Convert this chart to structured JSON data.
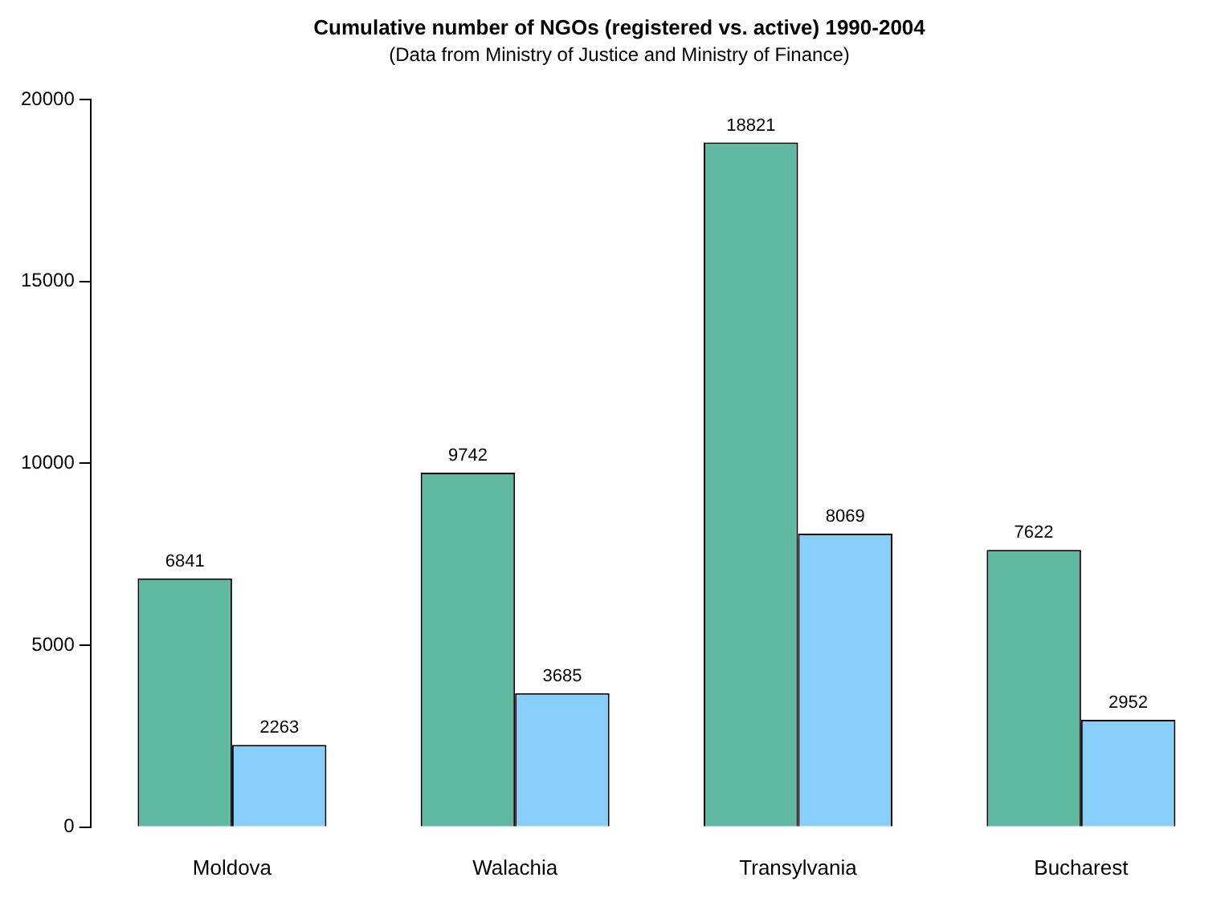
{
  "chart_data": {
    "type": "bar",
    "title": "Cumulative number of NGOs (registered vs. active) 1990-2004",
    "subtitle": "(Data from Ministry of Justice and Ministry of Finance)",
    "categories": [
      "Moldova",
      "Walachia",
      "Transylvania",
      "Bucharest"
    ],
    "series": [
      {
        "color": "#5fb9a0",
        "values": [
          6841,
          9742,
          18821,
          7622
        ]
      },
      {
        "color": "#87cefa",
        "values": [
          2263,
          3685,
          8069,
          2952
        ]
      }
    ],
    "ylim": [
      0,
      20000
    ],
    "yticks": [
      0,
      5000,
      10000,
      15000,
      20000
    ],
    "grid": false,
    "legend": false,
    "data_labels": true
  }
}
